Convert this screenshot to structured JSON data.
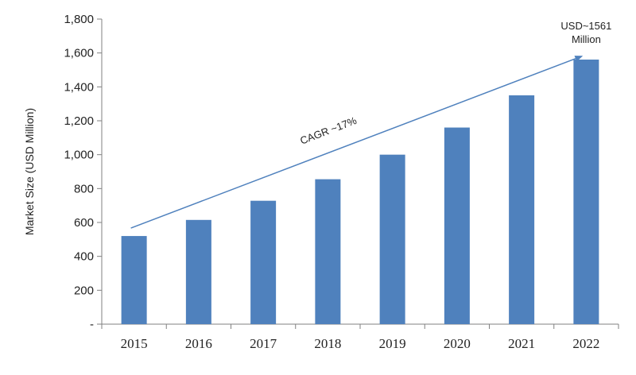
{
  "chart_data": {
    "type": "bar",
    "categories": [
      "2015",
      "2016",
      "2017",
      "2018",
      "2019",
      "2020",
      "2021",
      "2022"
    ],
    "values": [
      520,
      615,
      728,
      855,
      1000,
      1160,
      1350,
      1561
    ],
    "ylabel": "Market Size (USD Million)",
    "ylim": [
      0,
      1800
    ],
    "y_ticks": [
      0,
      200,
      400,
      600,
      800,
      1000,
      1200,
      1400,
      1600,
      1800
    ],
    "y_tick_labels": [
      "-",
      "200",
      "400",
      "600",
      "800",
      "1,000",
      "1,200",
      "1,400",
      "1,600",
      "1,800"
    ],
    "bar_color": "#4f81bd",
    "arrow_color": "#4f81bd",
    "grid": false,
    "annotations": {
      "cagr": "CAGR ~17%",
      "end_value_line1": "USD~1561",
      "end_value_line2": "Million"
    }
  }
}
